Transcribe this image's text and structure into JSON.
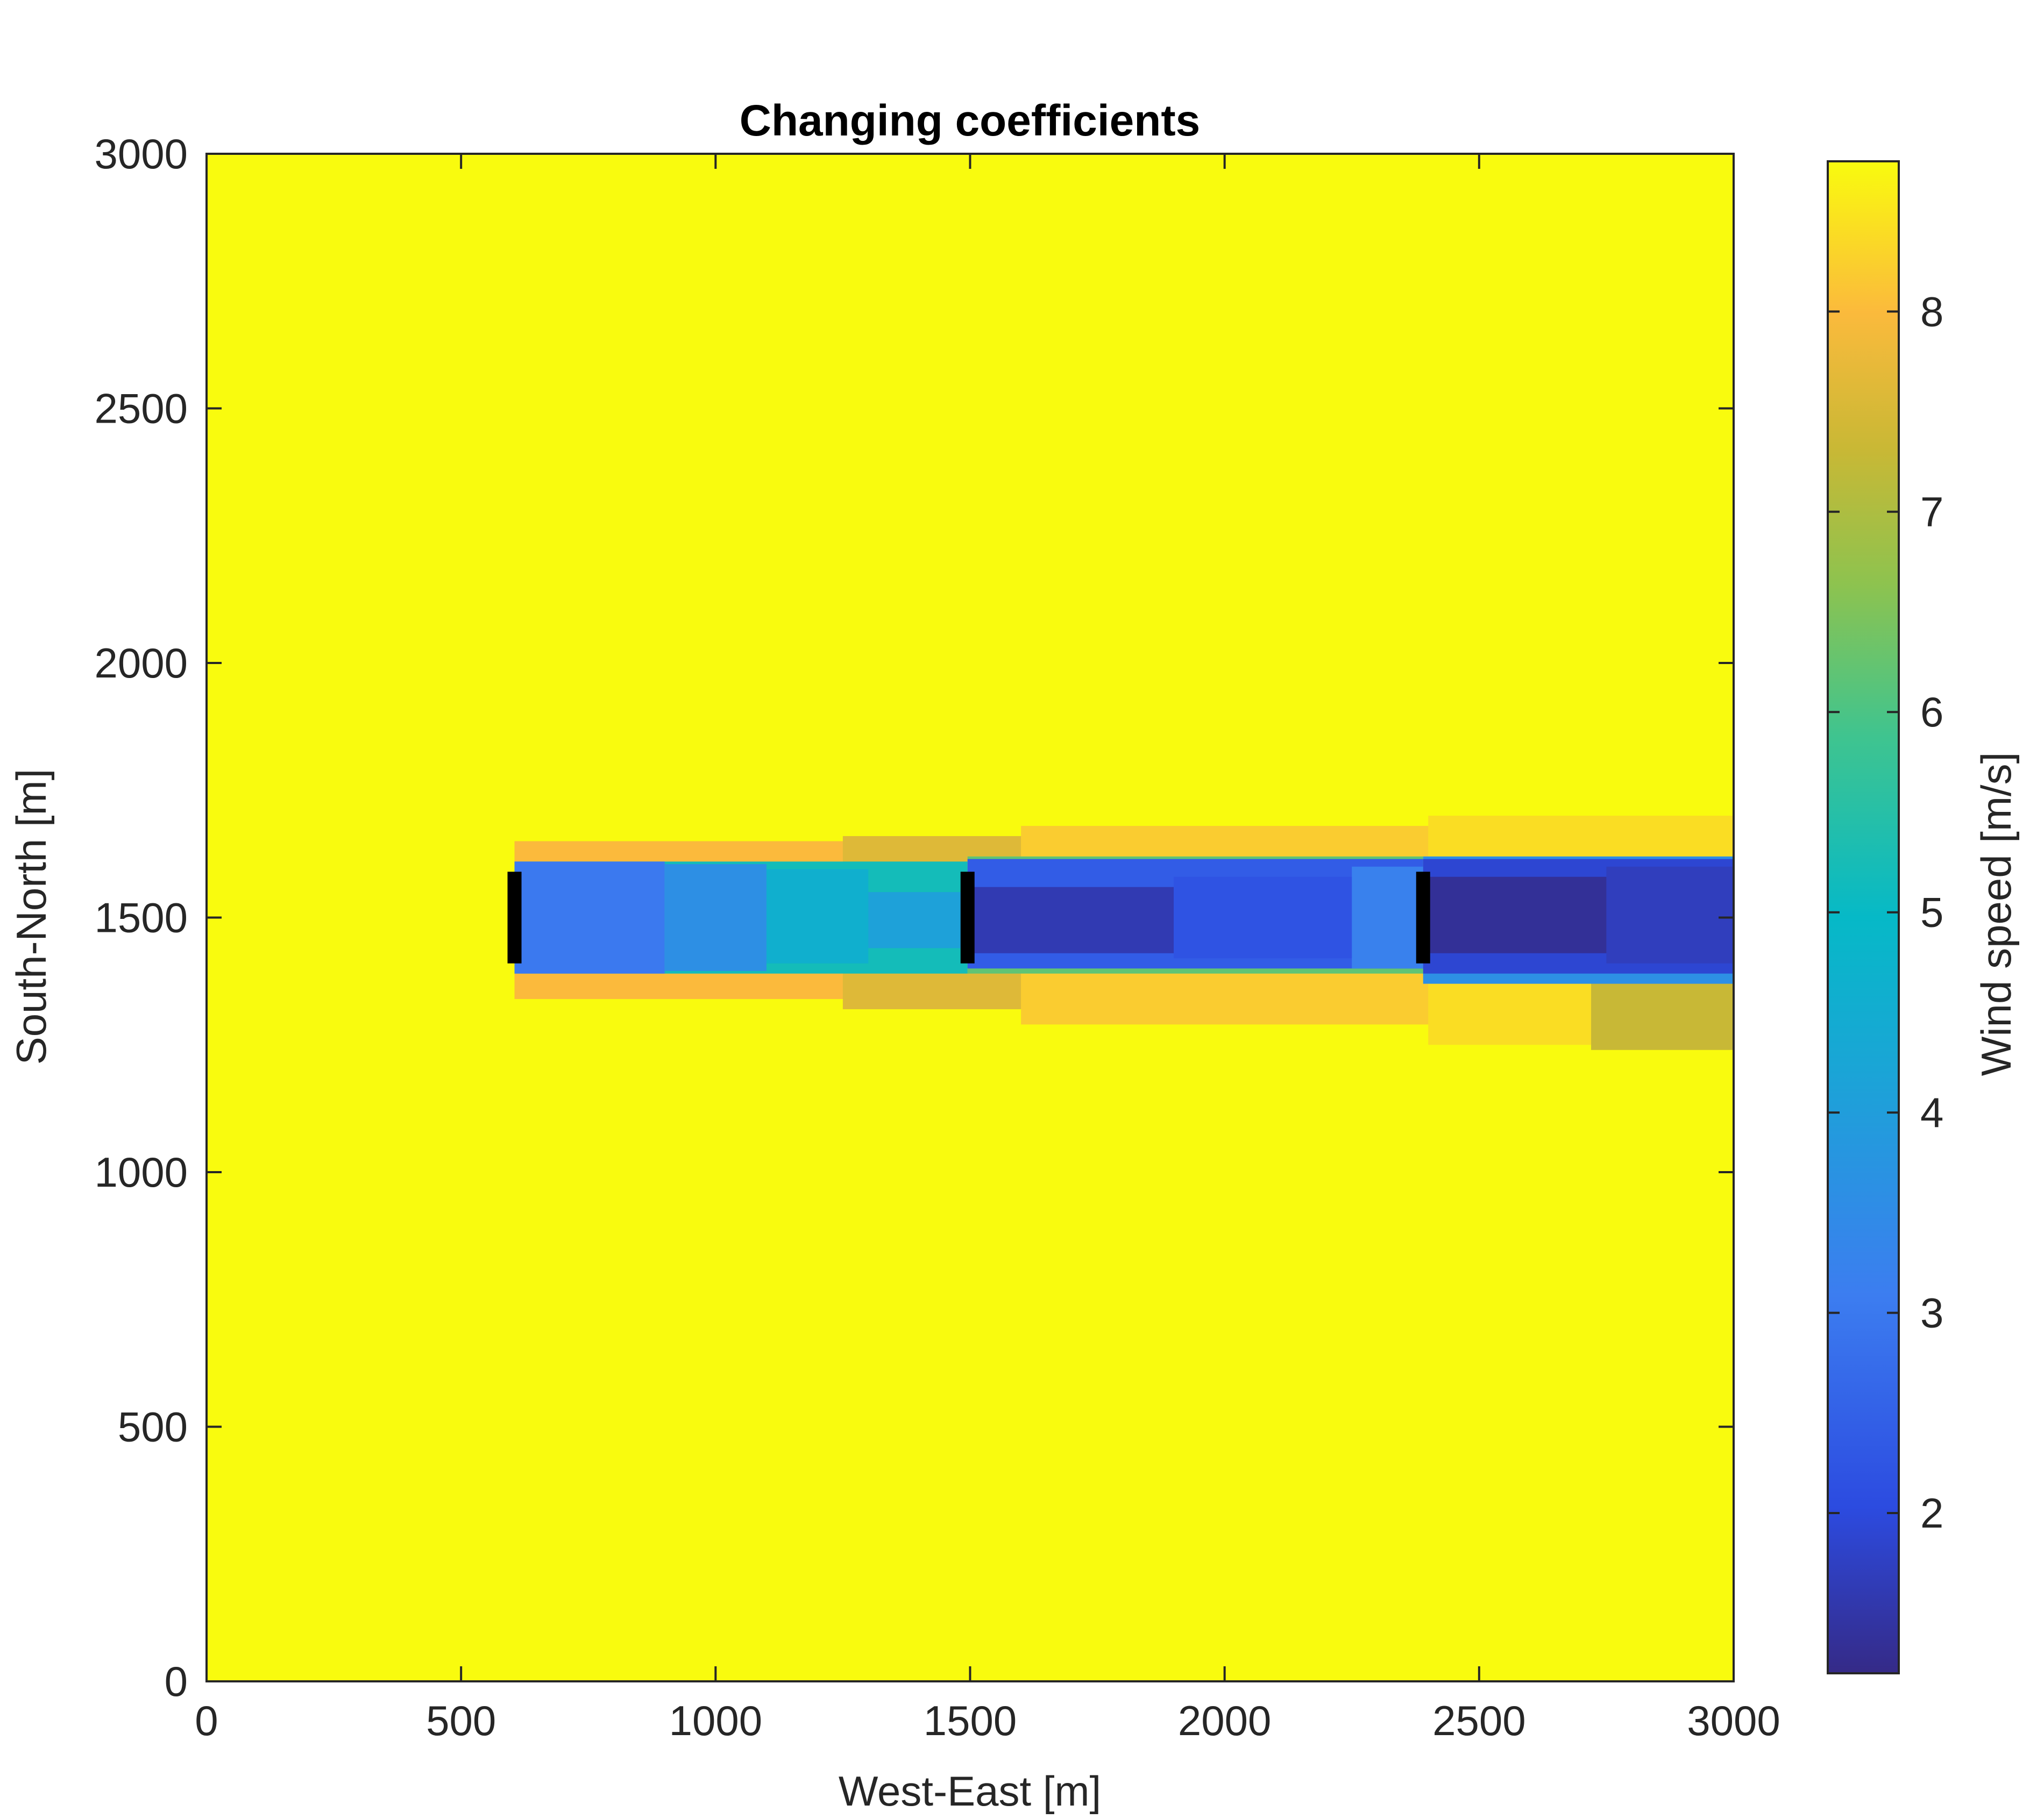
{
  "chart_data": {
    "type": "heatmap",
    "title": "Changing coefficients",
    "xlabel": "West-East [m]",
    "ylabel": "South-North [m]",
    "xlim": [
      0,
      3000
    ],
    "ylim": [
      0,
      3000
    ],
    "x_ticks": [
      0,
      500,
      1000,
      1500,
      2000,
      2500,
      3000
    ],
    "y_ticks": [
      0,
      500,
      1000,
      1500,
      2000,
      2500,
      3000
    ],
    "x_tick_labels": [
      "0",
      "500",
      "1000",
      "1500",
      "2000",
      "2500",
      "3000"
    ],
    "y_tick_labels": [
      "0",
      "500",
      "1000",
      "1500",
      "2000",
      "2500",
      "3000"
    ],
    "grid": false,
    "colormap": "parula",
    "background_value": 8.75,
    "colorbar": {
      "label": "Wind speed [m/s]",
      "range": [
        1.2,
        8.75
      ],
      "ticks": [
        2,
        3,
        4,
        5,
        6,
        7,
        8
      ],
      "tick_labels": [
        "2",
        "3",
        "4",
        "5",
        "6",
        "7",
        "8"
      ]
    },
    "turbines": [
      {
        "x": 605,
        "y_min": 1410,
        "y_max": 1590
      },
      {
        "x": 1495,
        "y_min": 1410,
        "y_max": 1590
      },
      {
        "x": 2390,
        "y_min": 1410,
        "y_max": 1590
      }
    ],
    "wake_regions": [
      {
        "x0": 605,
        "x1": 3000,
        "y0": 1340,
        "y1": 1650,
        "value": 8.0
      },
      {
        "x0": 1250,
        "x1": 3000,
        "y0": 1320,
        "y1": 1660,
        "value": 7.6
      },
      {
        "x0": 1600,
        "x1": 3000,
        "y0": 1290,
        "y1": 1680,
        "value": 8.2
      },
      {
        "x0": 2400,
        "x1": 3000,
        "y0": 1250,
        "y1": 1700,
        "value": 8.4
      },
      {
        "x0": 2720,
        "x1": 3000,
        "y0": 1240,
        "y1": 1380,
        "value": 7.3
      },
      {
        "x0": 605,
        "x1": 1495,
        "y0": 1390,
        "y1": 1610,
        "value": 5.2
      },
      {
        "x0": 605,
        "x1": 900,
        "y0": 1390,
        "y1": 1610,
        "value": 3.0
      },
      {
        "x0": 900,
        "x1": 1100,
        "y0": 1395,
        "y1": 1605,
        "value": 3.6
      },
      {
        "x0": 1100,
        "x1": 1300,
        "y0": 1410,
        "y1": 1595,
        "value": 4.6
      },
      {
        "x0": 1300,
        "x1": 1495,
        "y0": 1440,
        "y1": 1550,
        "value": 4.1
      },
      {
        "x0": 1495,
        "x1": 2390,
        "y0": 1390,
        "y1": 1620,
        "value": 6.2
      },
      {
        "x0": 1495,
        "x1": 2390,
        "y0": 1400,
        "y1": 1615,
        "value": 2.4
      },
      {
        "x0": 1495,
        "x1": 1900,
        "y0": 1430,
        "y1": 1560,
        "value": 1.6
      },
      {
        "x0": 1900,
        "x1": 2250,
        "y0": 1420,
        "y1": 1580,
        "value": 2.2
      },
      {
        "x0": 2250,
        "x1": 2390,
        "y0": 1400,
        "y1": 1600,
        "value": 3.2
      },
      {
        "x0": 2390,
        "x1": 3000,
        "y0": 1370,
        "y1": 1620,
        "value": 3.6
      },
      {
        "x0": 2390,
        "x1": 3000,
        "y0": 1390,
        "y1": 1615,
        "value": 1.9
      },
      {
        "x0": 2390,
        "x1": 2750,
        "y0": 1430,
        "y1": 1580,
        "value": 1.35
      },
      {
        "x0": 2750,
        "x1": 3000,
        "y0": 1410,
        "y1": 1600,
        "value": 1.7
      }
    ]
  }
}
